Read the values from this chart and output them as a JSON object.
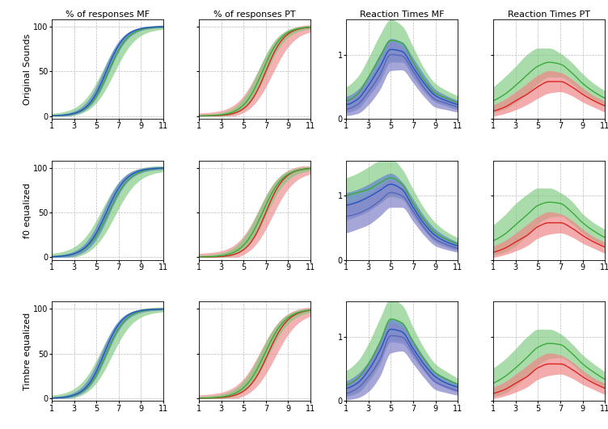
{
  "col_titles": [
    "% of responses MF",
    "% of responses PT",
    "Reaction Times MF",
    "Reaction Times PT"
  ],
  "row_labels": [
    "Original Sounds",
    "f0 equalized",
    "Timbre equalized"
  ],
  "xticks": [
    1,
    3,
    5,
    7,
    9,
    11
  ],
  "figsize": [
    7.52,
    5.31
  ],
  "dpi": 100,
  "green_line": "#3aaa3a",
  "green_fill": "#7dc87d",
  "blue_line": "#2255bb",
  "blue_fill": "#6688cc",
  "red_line": "#dd2222",
  "red_fill": "#ee8888",
  "purple_fill": "#8888cc",
  "purple_line": "#5566bb",
  "bg_color": "#f8f8f8"
}
